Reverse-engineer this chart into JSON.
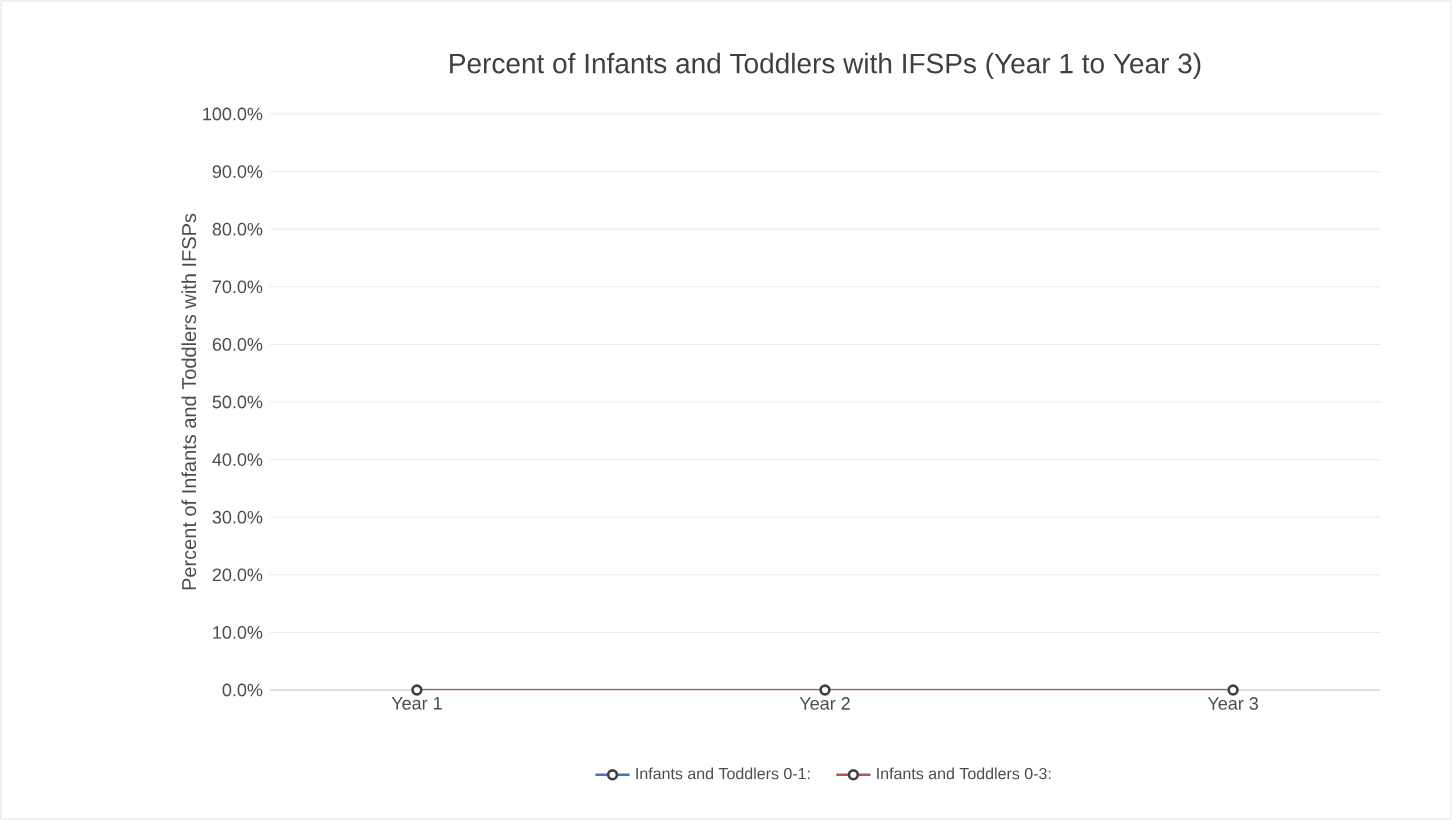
{
  "chart_data": {
    "type": "line",
    "title": "Percent of Infants and Toddlers with IFSPs (Year 1 to Year 3)",
    "ylabel": "Percent of Infants and Toddlers with IFSPs",
    "categories": [
      "Year 1",
      "Year 2",
      "Year 3"
    ],
    "series": [
      {
        "name": "Infants and Toddlers 0-1:",
        "color": "#4472c4",
        "values": [
          null,
          null,
          null
        ]
      },
      {
        "name": "Infants and Toddlers 0-3:",
        "color": "#c0504d",
        "values": [
          0,
          0,
          0
        ]
      }
    ],
    "ylim": [
      0,
      100
    ],
    "yticks": [
      {
        "value": 0,
        "label": "0.0%"
      },
      {
        "value": 10,
        "label": "10.0%"
      },
      {
        "value": 20,
        "label": "20.0%"
      },
      {
        "value": 30,
        "label": "30.0%"
      },
      {
        "value": 40,
        "label": "40.0%"
      },
      {
        "value": 50,
        "label": "50.0%"
      },
      {
        "value": 60,
        "label": "60.0%"
      },
      {
        "value": 70,
        "label": "70.0%"
      },
      {
        "value": 80,
        "label": "80.0%"
      },
      {
        "value": 90,
        "label": "90.0%"
      },
      {
        "value": 100,
        "label": "100.0%"
      }
    ],
    "grid": "y",
    "legend": "bottom",
    "marker": "circle",
    "line_style": "solid"
  }
}
